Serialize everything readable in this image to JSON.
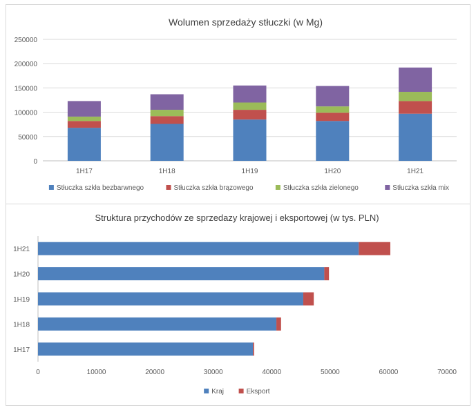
{
  "chart_data": [
    {
      "type": "bar",
      "orientation": "vertical",
      "stacked": true,
      "title": "Wolumen sprzedaży stłuczki (w Mg)",
      "categories": [
        "1H17",
        "1H18",
        "1H19",
        "1H20",
        "1H21"
      ],
      "series": [
        {
          "name": "Stłuczka szkła bezbarwnego",
          "color": "#4f81bd",
          "values": [
            68000,
            76000,
            85000,
            82000,
            97000
          ]
        },
        {
          "name": "Stłuczka szkła brązowego",
          "color": "#c0504d",
          "values": [
            14000,
            16000,
            20000,
            17000,
            26000
          ]
        },
        {
          "name": "Stłuczka szkła zielonego",
          "color": "#9bbb59",
          "values": [
            9000,
            13000,
            15000,
            13000,
            19000
          ]
        },
        {
          "name": "Stłuczka szkła mix",
          "color": "#8064a2",
          "values": [
            32000,
            32000,
            35000,
            42000,
            50000
          ]
        }
      ],
      "ylim": [
        0,
        250000
      ],
      "yticks": [
        "0",
        "50000",
        "100000",
        "150000",
        "200000",
        "250000"
      ],
      "grid": true,
      "legend": "bottom"
    },
    {
      "type": "bar",
      "orientation": "horizontal",
      "stacked": true,
      "title": "Struktura przychodów ze sprzedazy krajowej i eksportowej (w tys. PLN)",
      "categories": [
        "1H17",
        "1H18",
        "1H19",
        "1H20",
        "1H21"
      ],
      "series": [
        {
          "name": "Kraj",
          "color": "#4f81bd",
          "values": [
            36800,
            40800,
            45400,
            49000,
            54900
          ]
        },
        {
          "name": "Eksport",
          "color": "#c0504d",
          "values": [
            200,
            800,
            1800,
            800,
            5400
          ]
        }
      ],
      "xlim": [
        0,
        70000
      ],
      "xticks": [
        "0",
        "10000",
        "20000",
        "30000",
        "40000",
        "50000",
        "60000",
        "70000"
      ],
      "grid": false,
      "legend": "bottom"
    }
  ]
}
